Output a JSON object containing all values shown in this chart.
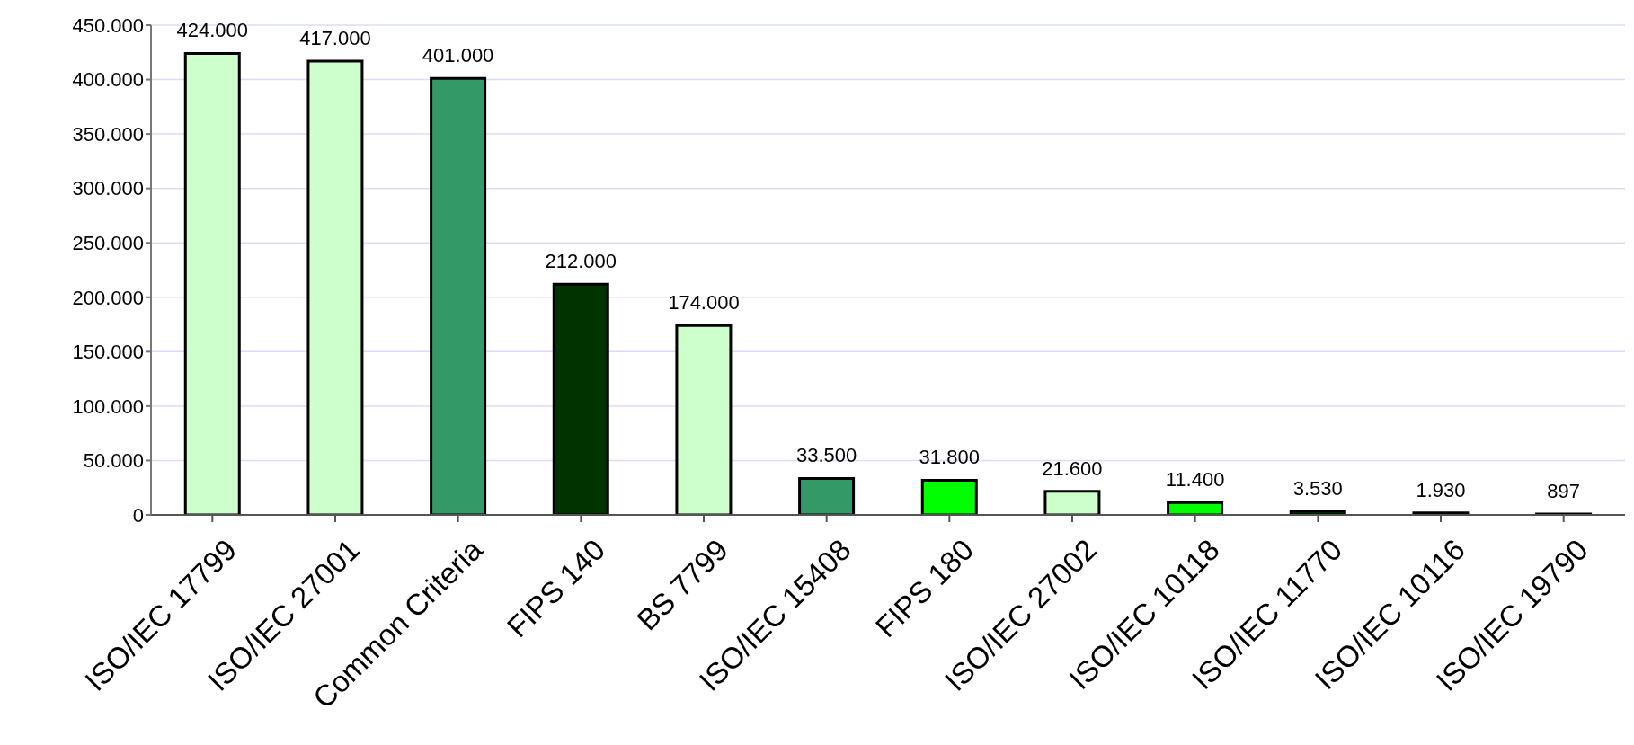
{
  "chart_data": {
    "type": "bar",
    "categories": [
      "ISO/IEC 17799",
      "ISO/IEC 27001",
      "Common Criteria",
      "FIPS 140",
      "BS 7799",
      "ISO/IEC 15408",
      "FIPS 180",
      "ISO/IEC 27002",
      "ISO/IEC 10118",
      "ISO/IEC 11770",
      "ISO/IEC 10116",
      "ISO/IEC 19790"
    ],
    "values": [
      424000,
      417000,
      401000,
      212000,
      174000,
      33500,
      31800,
      21600,
      11400,
      3530,
      1930,
      897
    ],
    "value_labels": [
      "424.000",
      "417.000",
      "401.000",
      "212.000",
      "174.000",
      "33.500",
      "31.800",
      "21.600",
      "11.400",
      "3.530",
      "1.930",
      "897"
    ],
    "colors": [
      "#ccffcc",
      "#ccffcc",
      "#339966",
      "#003300",
      "#ccffcc",
      "#339966",
      "#00ff00",
      "#ccffcc",
      "#00ff00",
      "#003300",
      "#003300",
      "#003300"
    ],
    "ylim": [
      0,
      450000
    ],
    "yticks": [
      {
        "value": 0,
        "label": "0"
      },
      {
        "value": 50000,
        "label": "50.000"
      },
      {
        "value": 100000,
        "label": "100.000"
      },
      {
        "value": 150000,
        "label": "150.000"
      },
      {
        "value": 200000,
        "label": "200.000"
      },
      {
        "value": 250000,
        "label": "250.000"
      },
      {
        "value": 300000,
        "label": "300.000"
      },
      {
        "value": 350000,
        "label": "350.000"
      },
      {
        "value": 400000,
        "label": "400.000"
      },
      {
        "value": 450000,
        "label": "450.000"
      }
    ],
    "grid": "y"
  }
}
